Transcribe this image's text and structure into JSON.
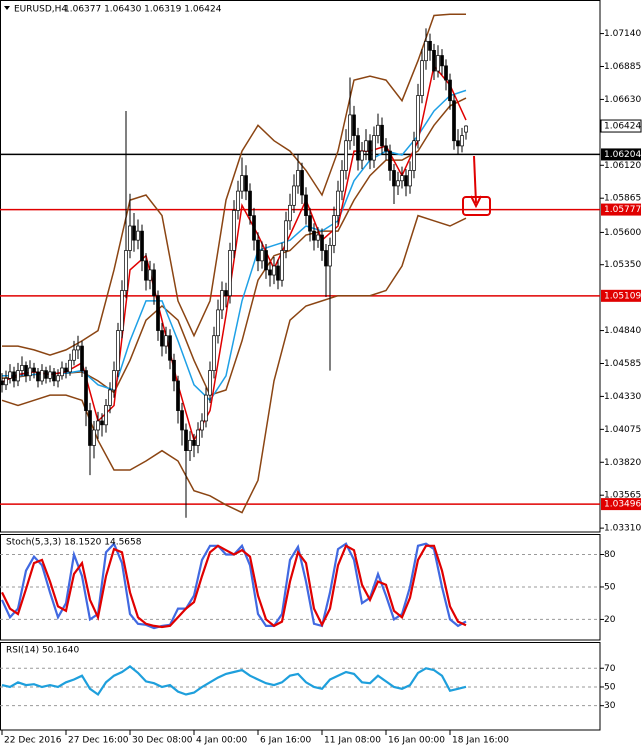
{
  "chart_data": [
    {
      "type": "candlestick",
      "title": "EURUSD,H4",
      "subtitle": "1.06377 1.06430 1.06319 1.06424",
      "xlim": [
        -0.5,
        149.5
      ],
      "ylim": [
        1.0328,
        1.074
      ],
      "yticks": [
        {
          "value": 1.0714,
          "label": "1.07140"
        },
        1.06885,
        {
          "value": 1.0663,
          "label": "1.06630"
        },
        {
          "value": 1.0612,
          "label": "1.06120"
        },
        1.05865,
        {
          "value": 1.056,
          "label": "1.05600"
        },
        {
          "value": 1.0535,
          "label": "1.05350"
        },
        {
          "value": 1.0484,
          "label": "1.04840"
        },
        1.04585,
        {
          "value": 1.0433,
          "label": "1.04330"
        },
        1.04075,
        {
          "value": 1.0382,
          "label": "1.03820"
        },
        1.03565,
        {
          "value": 1.0331,
          "label": "1.03310"
        }
      ],
      "color_up": "#ffffff",
      "color_down": "#000000",
      "x": [
        0,
        1,
        2,
        3,
        4,
        5,
        6,
        7,
        8,
        9,
        10,
        11,
        12,
        13,
        14,
        15,
        16,
        17,
        18,
        19,
        20,
        21,
        22,
        23,
        24,
        25,
        26,
        27,
        28,
        29,
        30,
        31,
        32,
        33,
        34,
        35,
        36,
        37,
        38,
        39,
        40,
        41,
        42,
        43,
        44,
        45,
        46,
        47,
        48,
        49,
        50,
        51,
        52,
        53,
        54,
        55,
        56,
        57,
        58,
        59,
        60,
        61,
        62,
        63,
        64,
        65,
        66,
        67,
        68,
        69,
        70,
        71,
        72,
        73,
        74,
        75,
        76,
        77,
        78,
        79,
        80,
        81,
        82,
        83,
        84,
        85,
        86,
        87,
        88,
        89,
        90,
        91,
        92,
        93,
        94,
        95,
        96,
        97,
        98,
        99,
        100,
        101,
        102,
        103,
        104,
        105,
        106,
        107,
        108,
        109,
        110,
        111,
        112,
        113,
        114,
        115,
        116
      ],
      "open": [
        1.0445,
        1.0442,
        1.0447,
        1.0452,
        1.0445,
        1.0453,
        1.0457,
        1.0449,
        1.0455,
        1.0452,
        1.0445,
        1.0453,
        1.0447,
        1.0452,
        1.0445,
        1.0449,
        1.0455,
        1.0452,
        1.0461,
        1.0469,
        1.0472,
        1.0453,
        1.0422,
        1.0395,
        1.0407,
        1.0414,
        1.0411,
        1.0426,
        1.0438,
        1.0453,
        1.0484,
        1.0515,
        1.0546,
        1.0565,
        1.0554,
        1.0561,
        1.0538,
        1.0523,
        1.0531,
        1.0511,
        1.0484,
        1.0472,
        1.048,
        1.0461,
        1.0445,
        1.0422,
        1.0407,
        1.0391,
        1.0399,
        1.0395,
        1.0407,
        1.0414,
        1.0434,
        1.0453,
        1.048,
        1.05,
        1.0515,
        1.0511,
        1.0546,
        1.0577,
        1.0592,
        1.0604,
        1.0592,
        1.0573,
        1.0554,
        1.0538,
        1.0546,
        1.0531,
        1.0527,
        1.0534,
        1.0523,
        1.0546,
        1.0569,
        1.0581,
        1.0596,
        1.0608,
        1.0589,
        1.0573,
        1.0561,
        1.0554,
        1.0558,
        1.0546,
        1.0534,
        1.055,
        1.0573,
        1.0592,
        1.0608,
        1.0631,
        1.0651,
        1.0635,
        1.0616,
        1.0623,
        1.0631,
        1.0616,
        1.0635,
        1.0643,
        1.0627,
        1.0623,
        1.0608,
        1.0596,
        1.06,
        1.0604,
        1.0596,
        1.0608,
        1.0631,
        1.0666,
        1.0693,
        1.0708,
        1.0701,
        1.0685,
        1.0697,
        1.0689,
        1.0678,
        1.0662,
        1.0631,
        1.0627,
        1.06377
      ],
      "high": [
        1.0451,
        1.0453,
        1.0458,
        1.0456,
        1.0459,
        1.0464,
        1.046,
        1.0461,
        1.0459,
        1.0455,
        1.0458,
        1.0456,
        1.0457,
        1.0455,
        1.0454,
        1.046,
        1.0459,
        1.0466,
        1.0476,
        1.048,
        1.0476,
        1.0456,
        1.0428,
        1.0414,
        1.0421,
        1.042,
        1.0431,
        1.0444,
        1.046,
        1.049,
        1.0523,
        1.0654,
        1.059,
        1.0575,
        1.057,
        1.0566,
        1.0544,
        1.0538,
        1.0536,
        1.0515,
        1.049,
        1.0487,
        1.0485,
        1.0466,
        1.0449,
        1.0428,
        1.0412,
        1.0406,
        1.0404,
        1.0413,
        1.042,
        1.044,
        1.046,
        1.0487,
        1.0508,
        1.0522,
        1.0521,
        1.0552,
        1.0585,
        1.06,
        1.0618,
        1.0612,
        1.0598,
        1.0579,
        1.056,
        1.0553,
        1.0551,
        1.0537,
        1.0541,
        1.0539,
        1.0552,
        1.0576,
        1.059,
        1.0605,
        1.062,
        1.0614,
        1.0595,
        1.0579,
        1.0567,
        1.0564,
        1.0563,
        1.0551,
        1.0556,
        1.058,
        1.06,
        1.0616,
        1.064,
        1.068,
        1.0658,
        1.0641,
        1.063,
        1.064,
        1.0636,
        1.0642,
        1.0652,
        1.0649,
        1.0633,
        1.0628,
        1.0613,
        1.0607,
        1.0611,
        1.0609,
        1.0615,
        1.0638,
        1.0675,
        1.0702,
        1.0718,
        1.0714,
        1.0706,
        1.0705,
        1.0702,
        1.0694,
        1.0683,
        1.0667,
        1.064,
        1.0641,
        1.0643
      ],
      "low": [
        1.0436,
        1.0438,
        1.0443,
        1.044,
        1.0441,
        1.0449,
        1.0444,
        1.0445,
        1.0447,
        1.044,
        1.0442,
        1.0443,
        1.0444,
        1.0441,
        1.044,
        1.0446,
        1.0447,
        1.0449,
        1.0457,
        1.0462,
        1.0448,
        1.041,
        1.0372,
        1.0385,
        1.04,
        1.0402,
        1.0405,
        1.042,
        1.0432,
        1.0448,
        1.0478,
        1.0509,
        1.054,
        1.0545,
        1.0547,
        1.053,
        1.0515,
        1.0516,
        1.0504,
        1.0476,
        1.0464,
        1.0466,
        1.0454,
        1.0437,
        1.0412,
        1.0395,
        1.0339,
        1.0383,
        1.0386,
        1.0389,
        1.0401,
        1.0409,
        1.0428,
        1.0447,
        1.0474,
        1.0493,
        1.0502,
        1.0505,
        1.054,
        1.057,
        1.0586,
        1.0585,
        1.0566,
        1.0546,
        1.053,
        1.0532,
        1.0524,
        1.0518,
        1.052,
        1.0516,
        1.0518,
        1.054,
        1.0562,
        1.0575,
        1.059,
        1.0582,
        1.0566,
        1.0553,
        1.0546,
        1.0548,
        1.0538,
        1.051,
        1.0453,
        1.0544,
        1.0566,
        1.0585,
        1.0601,
        1.0624,
        1.0627,
        1.0608,
        1.0609,
        1.0616,
        1.0609,
        1.061,
        1.0629,
        1.062,
        1.0616,
        1.06,
        1.0582,
        1.0589,
        1.0594,
        1.0588,
        1.059,
        1.0602,
        1.0625,
        1.066,
        1.0686,
        1.0693,
        1.0678,
        1.068,
        1.0682,
        1.067,
        1.0655,
        1.0624,
        1.062,
        1.0622,
        1.06319
      ],
      "close": [
        1.0442,
        1.0447,
        1.0452,
        1.0445,
        1.0453,
        1.0457,
        1.0449,
        1.0455,
        1.0452,
        1.0445,
        1.0453,
        1.0447,
        1.0452,
        1.0445,
        1.0449,
        1.0455,
        1.0452,
        1.0461,
        1.0469,
        1.0472,
        1.0453,
        1.0422,
        1.0395,
        1.0407,
        1.0414,
        1.0411,
        1.0426,
        1.0438,
        1.0453,
        1.0484,
        1.0515,
        1.0546,
        1.0565,
        1.0554,
        1.0561,
        1.0538,
        1.0523,
        1.0531,
        1.0511,
        1.0484,
        1.0472,
        1.048,
        1.0461,
        1.0445,
        1.0422,
        1.0407,
        1.0391,
        1.0399,
        1.0395,
        1.0407,
        1.0414,
        1.0434,
        1.0453,
        1.048,
        1.05,
        1.0515,
        1.0511,
        1.0546,
        1.0577,
        1.0592,
        1.0604,
        1.0592,
        1.0573,
        1.0554,
        1.0538,
        1.0546,
        1.0531,
        1.0527,
        1.0534,
        1.0523,
        1.0546,
        1.0569,
        1.0581,
        1.0596,
        1.0608,
        1.0589,
        1.0573,
        1.0561,
        1.0554,
        1.0558,
        1.0546,
        1.0534,
        1.055,
        1.0573,
        1.0592,
        1.0608,
        1.0631,
        1.0651,
        1.0635,
        1.0616,
        1.0623,
        1.0631,
        1.0616,
        1.0635,
        1.0643,
        1.0627,
        1.0623,
        1.0608,
        1.0596,
        1.06,
        1.0604,
        1.0596,
        1.0608,
        1.0631,
        1.0666,
        1.0693,
        1.0708,
        1.0701,
        1.0685,
        1.0697,
        1.0689,
        1.0678,
        1.0662,
        1.0631,
        1.0627,
        1.0635,
        1.06424
      ],
      "indicator_x": [
        0,
        4,
        8,
        12,
        16,
        20,
        24,
        28,
        32,
        36,
        40,
        44,
        48,
        52,
        56,
        60,
        64,
        68,
        72,
        76,
        80,
        84,
        88,
        92,
        96,
        100,
        104,
        108,
        112,
        116
      ],
      "indicators": [
        {
          "color": "#8b4513",
          "values": [
            1.0472,
            1.0472,
            1.0469,
            1.0465,
            1.0469,
            1.0476,
            1.0484,
            1.0531,
            1.0585,
            1.0589,
            1.0573,
            1.0507,
            1.048,
            1.0507,
            1.0585,
            1.0623,
            1.0643,
            1.0631,
            1.0623,
            1.0608,
            1.0589,
            1.0623,
            1.0678,
            1.0681,
            1.0678,
            1.0662,
            1.0693,
            1.0728,
            1.0729,
            1.0729
          ]
        },
        {
          "color": "#8b4513",
          "values": [
            1.0447,
            1.0448,
            1.045,
            1.0451,
            1.0451,
            1.0452,
            1.0445,
            1.0436,
            1.0461,
            1.0492,
            1.0503,
            1.0492,
            1.0461,
            1.0434,
            1.0438,
            1.0476,
            1.0523,
            1.0542,
            1.0546,
            1.0558,
            1.0561,
            1.0561,
            1.0585,
            1.0604,
            1.0616,
            1.0616,
            1.0623,
            1.0643,
            1.0658,
            1.0664
          ]
        },
        {
          "color": "#8b4513",
          "values": [
            1.043,
            1.0426,
            1.043,
            1.0434,
            1.0434,
            1.043,
            1.0399,
            1.0376,
            1.0376,
            1.0383,
            1.0391,
            1.0383,
            1.036,
            1.0356,
            1.0349,
            1.0343,
            1.0368,
            1.0445,
            1.0492,
            1.0503,
            1.0507,
            1.0511,
            1.0511,
            1.0511,
            1.0515,
            1.0534,
            1.0573,
            1.0569,
            1.0565,
            1.0571
          ]
        },
        {
          "color": "#1ea0e6",
          "values": [
            1.0449,
            1.0449,
            1.045,
            1.0451,
            1.0451,
            1.0453,
            1.0442,
            1.0438,
            1.0476,
            1.0507,
            1.0507,
            1.0476,
            1.0442,
            1.043,
            1.0449,
            1.0507,
            1.0546,
            1.055,
            1.0554,
            1.0565,
            1.0561,
            1.0569,
            1.06,
            1.0616,
            1.0623,
            1.062,
            1.0635,
            1.0654,
            1.0666,
            1.067
          ]
        },
        {
          "color": "#e00000",
          "values": [
            1.0444,
            1.045,
            1.0452,
            1.045,
            1.0452,
            1.0459,
            1.0414,
            1.0426,
            1.0531,
            1.0542,
            1.0492,
            1.0442,
            1.0399,
            1.0422,
            1.0496,
            1.0581,
            1.0558,
            1.0532,
            1.0558,
            1.0585,
            1.0554,
            1.0565,
            1.0623,
            1.0623,
            1.0627,
            1.0604,
            1.0631,
            1.0689,
            1.0674,
            1.0647
          ]
        }
      ],
      "hlines": [
        {
          "value": 1.06204,
          "color": "#000000"
        },
        {
          "value": 1.05777,
          "color": "#e00000"
        },
        {
          "value": 1.05109,
          "color": "#e00000"
        },
        {
          "value": 1.03496,
          "color": "#e00000"
        }
      ]
    },
    {
      "type": "line",
      "title": "Stoch(5,3,3) 18.1520 14.5658",
      "xlim": [
        -0.5,
        149.5
      ],
      "ylim": [
        1,
        98
      ],
      "yticks": [
        20,
        50,
        80
      ],
      "x": [
        0,
        2,
        4,
        6,
        8,
        10,
        12,
        14,
        16,
        18,
        20,
        22,
        24,
        26,
        28,
        30,
        32,
        34,
        36,
        38,
        40,
        42,
        44,
        46,
        48,
        50,
        52,
        54,
        56,
        58,
        60,
        62,
        64,
        66,
        68,
        70,
        72,
        74,
        76,
        78,
        80,
        82,
        84,
        86,
        88,
        90,
        92,
        94,
        96,
        98,
        100,
        102,
        104,
        106,
        108,
        110,
        112,
        114,
        116
      ],
      "series": [
        {
          "color": "#4169e1",
          "values": [
            38,
            22,
            30,
            65,
            78,
            70,
            45,
            22,
            35,
            80,
            60,
            20,
            25,
            82,
            90,
            72,
            25,
            16,
            15,
            12,
            14,
            15,
            30,
            30,
            42,
            75,
            88,
            88,
            80,
            80,
            88,
            70,
            25,
            14,
            14,
            25,
            75,
            87,
            55,
            16,
            14,
            45,
            85,
            90,
            75,
            35,
            40,
            62,
            42,
            20,
            25,
            50,
            88,
            90,
            85,
            50,
            20,
            14,
            18.152
          ]
        },
        {
          "color": "#e00000",
          "values": [
            45,
            30,
            25,
            48,
            72,
            75,
            55,
            32,
            28,
            62,
            72,
            38,
            22,
            60,
            85,
            82,
            45,
            22,
            16,
            14,
            13,
            14,
            22,
            30,
            36,
            60,
            82,
            88,
            84,
            80,
            84,
            78,
            42,
            20,
            14,
            18,
            55,
            82,
            72,
            30,
            15,
            30,
            70,
            88,
            84,
            52,
            38,
            55,
            52,
            28,
            22,
            40,
            75,
            88,
            88,
            65,
            32,
            18,
            14.5658
          ]
        }
      ]
    },
    {
      "type": "line",
      "title": "RSI(14) 50.1640",
      "xlim": [
        -0.5,
        149.5
      ],
      "ylim": [
        4,
        97
      ],
      "yticks": [
        30,
        50,
        70
      ],
      "xticks": [
        {
          "value": 0,
          "label": "22 Dec 2016"
        },
        {
          "value": 16,
          "label": "27 Dec 16:00"
        },
        {
          "value": 32,
          "label": "30 Dec 08:00"
        },
        {
          "value": 48,
          "label": "4 Jan 00:00"
        },
        {
          "value": 64,
          "label": "6 Jan 16:00"
        },
        {
          "value": 80,
          "label": "11 Jan 08:00"
        },
        {
          "value": 96,
          "label": "16 Jan 00:00"
        },
        {
          "value": 112,
          "label": "18 Jan 16:00"
        }
      ],
      "x": [
        0,
        2,
        4,
        6,
        8,
        10,
        12,
        14,
        16,
        18,
        20,
        22,
        24,
        26,
        28,
        30,
        32,
        34,
        36,
        38,
        40,
        42,
        44,
        46,
        48,
        50,
        52,
        54,
        56,
        58,
        60,
        62,
        64,
        66,
        68,
        70,
        72,
        74,
        76,
        78,
        80,
        82,
        84,
        86,
        88,
        90,
        92,
        94,
        96,
        98,
        100,
        102,
        104,
        106,
        108,
        110,
        112,
        114,
        116
      ],
      "series": [
        {
          "color": "#1e9fdc",
          "values": [
            52,
            50,
            55,
            52,
            53,
            50,
            52,
            50,
            55,
            58,
            62,
            48,
            42,
            55,
            62,
            66,
            72,
            65,
            56,
            54,
            50,
            52,
            45,
            42,
            44,
            50,
            55,
            60,
            64,
            66,
            68,
            62,
            58,
            54,
            52,
            55,
            62,
            64,
            55,
            50,
            48,
            58,
            62,
            66,
            64,
            55,
            54,
            62,
            56,
            50,
            48,
            52,
            65,
            70,
            68,
            62,
            46,
            48,
            50.164
          ]
        }
      ]
    }
  ]
}
